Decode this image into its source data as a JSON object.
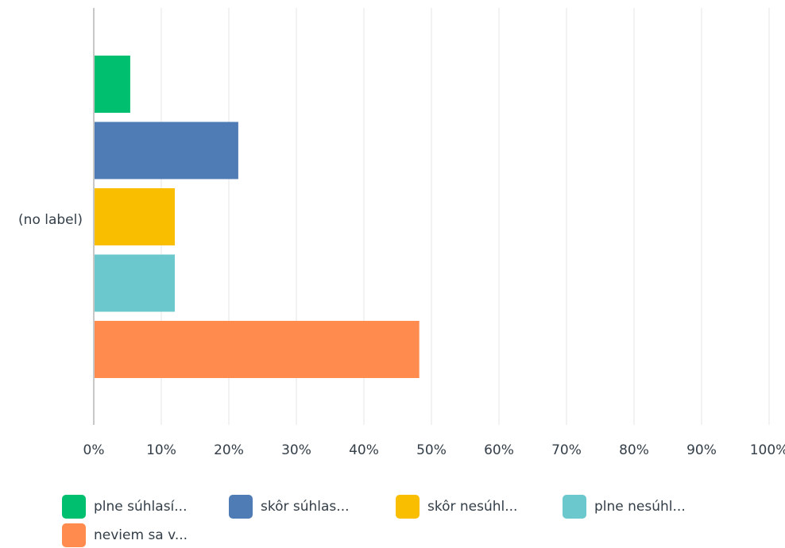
{
  "chart_data": {
    "type": "bar",
    "orientation": "horizontal",
    "categories": [
      "(no label)"
    ],
    "series": [
      {
        "name": "plne súhlasí...",
        "values": [
          5.4
        ],
        "color": "#00bf6f"
      },
      {
        "name": "skôr súhlas...",
        "values": [
          21.4
        ],
        "color": "#507cb6"
      },
      {
        "name": "skôr nesúhl...",
        "values": [
          12.0
        ],
        "color": "#f9be00"
      },
      {
        "name": "plne nesúhl...",
        "values": [
          12.0
        ],
        "color": "#6bc8cd"
      },
      {
        "name": "neviem sa v...",
        "values": [
          48.2
        ],
        "color": "#ff8b4f"
      }
    ],
    "xlim": [
      0,
      100
    ],
    "x_ticks": [
      "0%",
      "10%",
      "20%",
      "30%",
      "40%",
      "50%",
      "60%",
      "70%",
      "80%",
      "90%",
      "100%"
    ],
    "grid": true,
    "legend_position": "bottom"
  }
}
